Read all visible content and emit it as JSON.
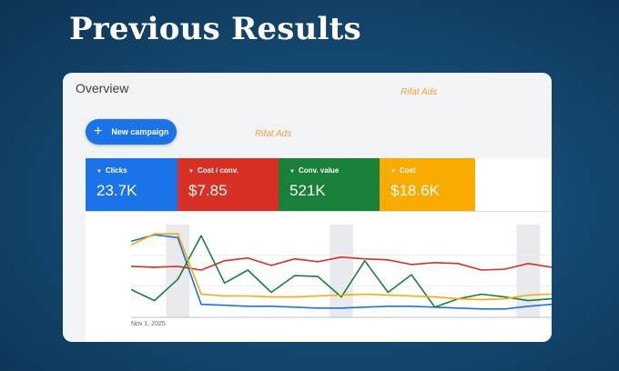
{
  "hero": {
    "title": "Previous Results"
  },
  "overview": {
    "title": "Overview",
    "new_campaign_label": "New campaign"
  },
  "watermark": "Rifat Ads",
  "metrics": [
    {
      "label": "Clicks",
      "value": "23.7K",
      "color": "#1a73e8"
    },
    {
      "label": "Cost / conv.",
      "value": "$7.85",
      "color": "#d93025"
    },
    {
      "label": "Conv. value",
      "value": "521K",
      "color": "#188038"
    },
    {
      "label": "Cost",
      "value": "$18.6K",
      "color": "#f9ab00"
    }
  ],
  "chart_data": {
    "type": "line",
    "x_tick_labels": [
      "Nov 1, 2025"
    ],
    "series": [
      {
        "color": "#1a73e8",
        "values": [
          82,
          89,
          86,
          14,
          13,
          12,
          12,
          11,
          10,
          10,
          11,
          12,
          12,
          11,
          10,
          9,
          9,
          12,
          14
        ]
      },
      {
        "color": "#d93025",
        "values": [
          55,
          54,
          55,
          51,
          61,
          64,
          56,
          63,
          60,
          65,
          63,
          62,
          57,
          59,
          58,
          51,
          52,
          58,
          54
        ]
      },
      {
        "color": "#188038",
        "values": [
          30,
          18,
          41,
          88,
          37,
          51,
          27,
          45,
          44,
          22,
          61,
          27,
          46,
          11,
          20,
          25,
          22,
          18,
          20
        ]
      },
      {
        "color": "#f9ab00",
        "values": [
          78,
          90,
          90,
          25,
          23,
          23,
          22,
          22,
          23,
          24,
          25,
          24,
          23,
          22,
          20,
          19,
          20,
          24,
          25
        ]
      }
    ],
    "shaded_bands": [
      2,
      9,
      17
    ]
  }
}
